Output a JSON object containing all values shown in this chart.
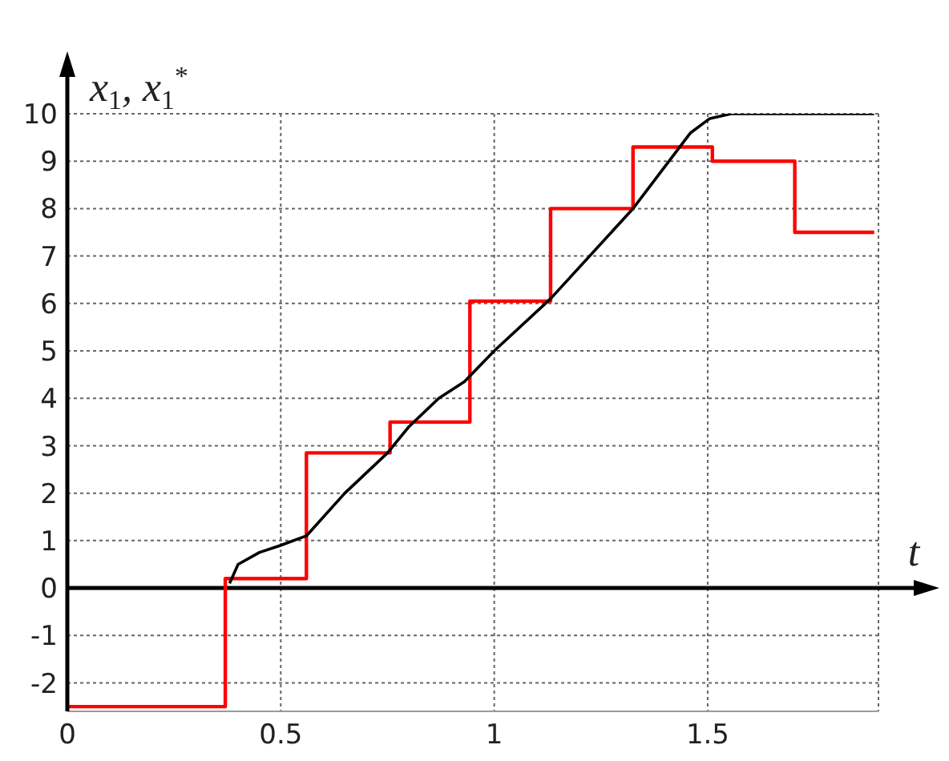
{
  "chart_data": {
    "type": "line",
    "xlabel": "t",
    "ylabel": "x$_{1}$, x$_{1}$$^{*}$",
    "xlim": [
      0,
      1.9
    ],
    "xticks": [
      0,
      0.5,
      1,
      1.5
    ],
    "ylim": [
      -2.6,
      10
    ],
    "yticks": [
      -2,
      -1,
      0,
      1,
      2,
      3,
      4,
      5,
      6,
      7,
      8,
      9,
      10
    ],
    "grid": true,
    "marker": "none",
    "line_style": "solid",
    "ref_lines": [
      {
        "axis": "y",
        "value": 0,
        "color": "#000000"
      }
    ],
    "series": [
      {
        "type": "step",
        "color": "#ff0000",
        "x": [
          0,
          0.37,
          0.56,
          0.756,
          0.943,
          1.132,
          1.325,
          1.511,
          1.704,
          1.89
        ],
        "values": [
          -2.5,
          0.2,
          2.85,
          3.5,
          6.05,
          8,
          9.3,
          9,
          7.5,
          7.5
        ]
      },
      {
        "type": "line",
        "color": "#000000",
        "x": [
          0.38,
          0.4,
          0.45,
          0.5,
          0.56,
          0.65,
          0.75,
          0.8,
          0.87,
          0.93,
          1,
          1.132,
          1.325,
          1.46,
          1.505,
          1.555,
          1.89
        ],
        "values": [
          0.1,
          0.5,
          0.75,
          0.9,
          1.1,
          2,
          2.85,
          3.4,
          4,
          4.35,
          5,
          6.1,
          8,
          9.6,
          9.9,
          10,
          10
        ]
      }
    ]
  }
}
